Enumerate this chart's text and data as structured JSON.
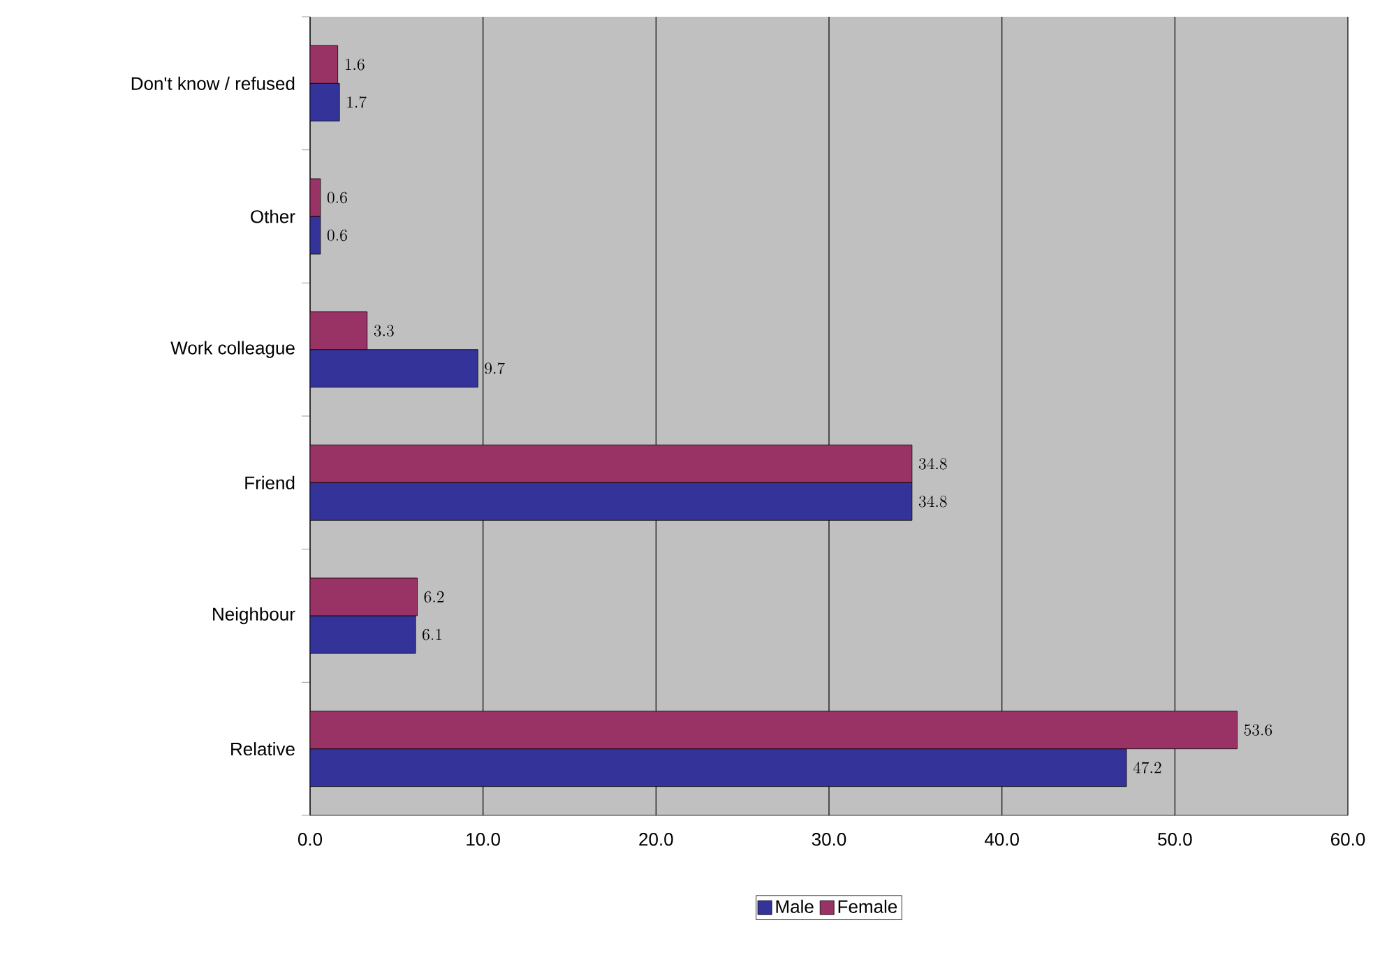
{
  "chart_data": {
    "type": "bar",
    "orientation": "horizontal",
    "categories": [
      "Don't know / refused",
      "Other",
      "Work colleague",
      "Friend",
      "Neighbour",
      "Relative"
    ],
    "series": [
      {
        "name": "Male",
        "color": "#333399",
        "values": [
          1.7,
          0.6,
          9.7,
          34.8,
          6.1,
          47.2
        ]
      },
      {
        "name": "Female",
        "color": "#993366",
        "values": [
          1.6,
          0.6,
          3.3,
          34.8,
          6.2,
          53.6
        ]
      }
    ],
    "xlim": [
      0,
      60
    ],
    "xticks": [
      {
        "value": 0,
        "label": "0.0"
      },
      {
        "value": 10,
        "label": "10.0"
      },
      {
        "value": 20,
        "label": "20.0"
      },
      {
        "value": 30,
        "label": "30.0"
      },
      {
        "value": 40,
        "label": "40.0"
      },
      {
        "value": 50,
        "label": "50.0"
      },
      {
        "value": 60,
        "label": "60.0"
      }
    ],
    "grid": "x",
    "legend": "bottom",
    "data_labels": true
  }
}
